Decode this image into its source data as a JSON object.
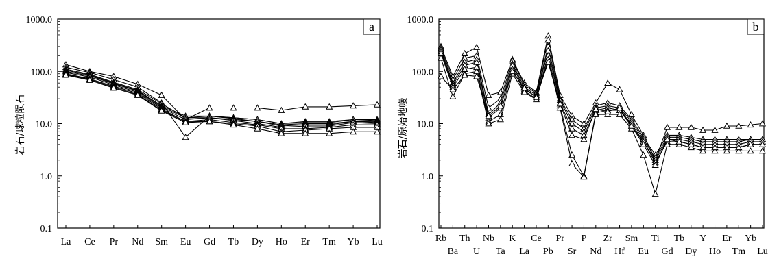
{
  "chart_data": [
    {
      "type": "line",
      "panel_label": "a",
      "ylabel": "岩石/球粒陨石",
      "yscale": "log",
      "ylim": [
        0.1,
        1000
      ],
      "ytick_labels": [
        "0.1",
        "1.0",
        "10.0",
        "100.0",
        "1000.0"
      ],
      "categories": [
        "La",
        "Ce",
        "Pr",
        "Nd",
        "Sm",
        "Eu",
        "Gd",
        "Tb",
        "Dy",
        "Ho",
        "Er",
        "Tm",
        "Yb",
        "Lu"
      ],
      "grid": false,
      "marker": "open-triangle",
      "series": [
        {
          "values": [
            135,
            100,
            80,
            57,
            35,
            12,
            20,
            20,
            20,
            18,
            21,
            21,
            22,
            23
          ]
        },
        {
          "values": [
            120,
            95,
            70,
            50,
            25,
            5.5,
            14,
            13,
            12,
            10,
            11,
            11,
            12,
            12
          ]
        },
        {
          "values": [
            110,
            88,
            62,
            45,
            24,
            13,
            14,
            13,
            12,
            10,
            10.5,
            10.5,
            12,
            11.5
          ]
        },
        {
          "values": [
            105,
            85,
            60,
            43,
            22,
            14,
            14,
            12.5,
            11,
            9.5,
            10,
            10,
            11,
            11
          ]
        },
        {
          "values": [
            100,
            82,
            58,
            42,
            21,
            13,
            13,
            12,
            11,
            9,
            9.5,
            9.5,
            11,
            10.5
          ]
        },
        {
          "values": [
            95,
            78,
            55,
            40,
            20,
            12,
            13,
            11.5,
            10,
            8.5,
            9,
            9,
            10.5,
            10
          ]
        },
        {
          "values": [
            90,
            72,
            52,
            38,
            19,
            11,
            12,
            10.5,
            9.5,
            8,
            8,
            8.5,
            9.5,
            9.5
          ]
        },
        {
          "values": [
            88,
            70,
            50,
            36,
            18,
            11,
            11,
            10,
            9,
            7,
            7.5,
            8,
            8.5,
            8.5
          ]
        },
        {
          "values": [
            85,
            68,
            48,
            35,
            17.5,
            10.5,
            11,
            9.5,
            8,
            6.5,
            6.5,
            6.5,
            7,
            7
          ]
        }
      ]
    },
    {
      "type": "line",
      "panel_label": "b",
      "ylabel": "岩石/原始地幔",
      "yscale": "log",
      "ylim": [
        0.1,
        1000
      ],
      "ytick_labels": [
        "0.1",
        "1.0",
        "10.0",
        "100.0",
        "1000.0"
      ],
      "categories": [
        "Rb",
        "Ba",
        "Th",
        "U",
        "Nb",
        "Ta",
        "K",
        "La",
        "Ce",
        "Pb",
        "Pr",
        "Sr",
        "P",
        "Nd",
        "Zr",
        "Hf",
        "Sm",
        "Eu",
        "Ti",
        "Gd",
        "Tb",
        "Dy",
        "Y",
        "Ho",
        "Er",
        "Tm",
        "Yb",
        "Lu"
      ],
      "grid": false,
      "marker": "open-triangle",
      "series": [
        {
          "values": [
            300,
            80,
            220,
            290,
            35,
            40,
            170,
            60,
            40,
            480,
            35,
            14,
            10,
            25,
            60,
            45,
            15,
            6,
            2,
            8.5,
            8.5,
            8.5,
            7.5,
            7.5,
            9,
            9,
            9.5,
            10
          ]
        },
        {
          "values": [
            280,
            70,
            180,
            200,
            20,
            30,
            160,
            55,
            38,
            400,
            30,
            12,
            8,
            22,
            25,
            22,
            12,
            5.5,
            2.5,
            6,
            6,
            5.5,
            5,
            5,
            5,
            5,
            5,
            5
          ]
        },
        {
          "values": [
            260,
            60,
            150,
            170,
            15,
            25,
            140,
            50,
            35,
            300,
            28,
            10,
            7,
            20,
            22,
            20,
            11,
            5,
            2.2,
            5.5,
            5.5,
            5,
            4.5,
            4.5,
            4.5,
            4.5,
            5,
            5
          ]
        },
        {
          "values": [
            240,
            55,
            130,
            150,
            13,
            20,
            130,
            45,
            33,
            250,
            25,
            8,
            6,
            18,
            20,
            18,
            10,
            4.5,
            2,
            5,
            5,
            4.5,
            4,
            4,
            4,
            4,
            4.5,
            4.5
          ]
        },
        {
          "values": [
            220,
            50,
            110,
            120,
            11,
            15,
            110,
            42,
            30,
            200,
            22,
            2.5,
            1.0,
            16,
            18,
            18,
            9,
            4.5,
            1.8,
            4.5,
            4.5,
            4,
            3.5,
            3.5,
            3.5,
            3.5,
            4,
            4
          ]
        },
        {
          "values": [
            180,
            33,
            90,
            100,
            10,
            12,
            90,
            40,
            29,
            170,
            20,
            1.7,
            0.95,
            15,
            15,
            15,
            8,
            2.5,
            0.45,
            4,
            4,
            3.5,
            3,
            3,
            3,
            3,
            3,
            3
          ]
        },
        {
          "values": [
            80,
            45,
            85,
            80,
            14,
            22,
            100,
            48,
            32,
            150,
            24,
            6,
            5,
            19,
            17,
            20,
            9,
            4,
            1.6,
            5,
            4.5,
            4,
            3.5,
            3.5,
            3.5,
            3.5,
            4,
            4
          ]
        }
      ]
    }
  ]
}
